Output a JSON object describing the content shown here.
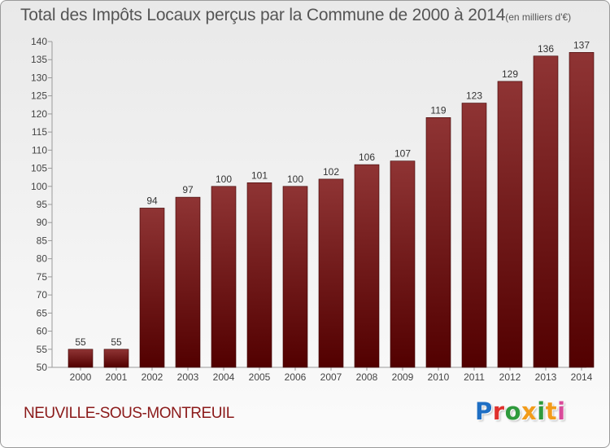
{
  "chart_data": {
    "type": "bar",
    "title": "Total des Impôts Locaux perçus par la Commune de 2000 à 2014",
    "title_unit": "(en milliers d'€)",
    "categories": [
      "2000",
      "2001",
      "2002",
      "2003",
      "2004",
      "2005",
      "2006",
      "2007",
      "2008",
      "2009",
      "2010",
      "2011",
      "2012",
      "2013",
      "2014"
    ],
    "values": [
      55,
      55,
      94,
      97,
      100,
      101,
      100,
      102,
      106,
      107,
      119,
      123,
      129,
      136,
      137
    ],
    "ylim": [
      50,
      140
    ],
    "yticks": [
      50,
      55,
      60,
      65,
      70,
      75,
      80,
      85,
      90,
      95,
      100,
      105,
      110,
      115,
      120,
      125,
      130,
      135,
      140
    ],
    "grid": false,
    "bar_color": "#7a1c1c"
  },
  "footer": {
    "commune": "NEUVILLE-SOUS-MONTREUIL",
    "logo_letters": [
      "P",
      "r",
      "o",
      "x",
      "i",
      "t",
      "i"
    ]
  }
}
